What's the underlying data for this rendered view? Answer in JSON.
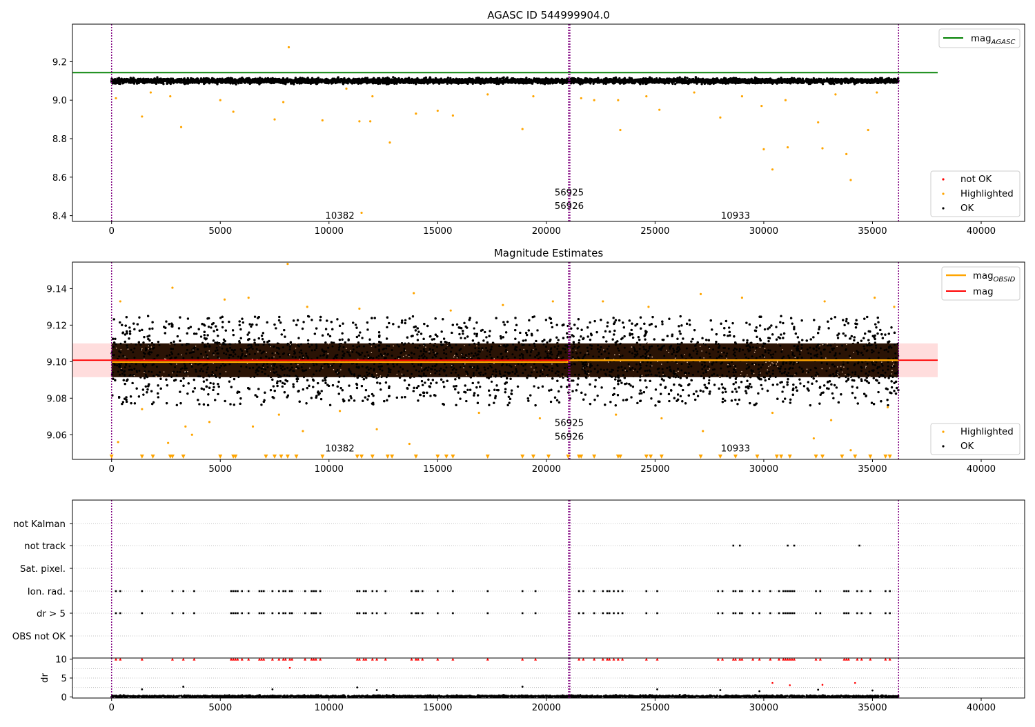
{
  "figure": {
    "title": "AGASC ID 544999904.0",
    "colors": {
      "ok": "#000000",
      "highlighted": "#ffa500",
      "not_ok": "#ff0000",
      "mag_agasc": "#008000",
      "mag_obsid": "#ffa500",
      "mag": "#ff0000",
      "obsid_boundary": "#800080",
      "mag_band": "#ffdddd"
    }
  },
  "chart_data": [
    {
      "type": "scatter",
      "title": "AGASC ID 544999904.0",
      "xlabel": "",
      "ylabel": "",
      "xlim": [
        -1800,
        42000
      ],
      "ylim": [
        8.37,
        9.395
      ],
      "xticks": [
        0,
        5000,
        10000,
        15000,
        20000,
        25000,
        30000,
        35000,
        40000
      ],
      "yticks": [
        8.4,
        8.6,
        8.8,
        9.0,
        9.2
      ],
      "yticklabels": [
        "8.4",
        "8.6",
        "8.8",
        "9.0",
        "9.2"
      ],
      "hlines": [
        {
          "name": "mag_AGASC",
          "y": 9.143,
          "xrange": [
            -1800,
            38000
          ],
          "color": "#008000"
        }
      ],
      "obsid_boundaries": [
        0,
        21020,
        21080,
        36200
      ],
      "obsid_labels": [
        {
          "text": "10382",
          "x": 10500,
          "y": 8.385
        },
        {
          "text": "56925",
          "x": 21050,
          "y": 8.505
        },
        {
          "text": "56926",
          "x": 21050,
          "y": 8.435
        },
        {
          "text": "10933",
          "x": 28700,
          "y": 8.385
        }
      ],
      "series": [
        {
          "name": "not OK",
          "color": "#ff0000",
          "points": []
        },
        {
          "name": "Highlighted",
          "color": "#ffa500",
          "points": [
            [
              1400,
              8.915
            ],
            [
              3200,
              8.86
            ],
            [
              5000,
              9.0
            ],
            [
              5600,
              8.94
            ],
            [
              7500,
              8.9
            ],
            [
              7900,
              8.99
            ],
            [
              8150,
              9.275
            ],
            [
              9700,
              8.895
            ],
            [
              11400,
              8.89
            ],
            [
              11500,
              8.415
            ],
            [
              11900,
              8.89
            ],
            [
              12800,
              8.78
            ],
            [
              14000,
              8.93
            ],
            [
              15000,
              8.945
            ],
            [
              15700,
              8.92
            ],
            [
              18900,
              8.85
            ],
            [
              23400,
              8.845
            ],
            [
              25200,
              8.95
            ],
            [
              28000,
              8.91
            ],
            [
              29900,
              8.97
            ],
            [
              30000,
              8.745
            ],
            [
              30400,
              8.64
            ],
            [
              31100,
              8.755
            ],
            [
              32500,
              8.885
            ],
            [
              32700,
              8.75
            ],
            [
              33800,
              8.72
            ],
            [
              34000,
              8.585
            ],
            [
              34800,
              8.845
            ],
            [
              200,
              9.01
            ],
            [
              1800,
              9.04
            ],
            [
              2700,
              9.02
            ],
            [
              10800,
              9.06
            ],
            [
              12000,
              9.02
            ],
            [
              17300,
              9.03
            ],
            [
              19400,
              9.02
            ],
            [
              21600,
              9.01
            ],
            [
              22200,
              9.0
            ],
            [
              23300,
              9.0
            ],
            [
              24600,
              9.02
            ],
            [
              26800,
              9.04
            ],
            [
              29000,
              9.02
            ],
            [
              31000,
              9.0
            ],
            [
              33300,
              9.03
            ],
            [
              35200,
              9.04
            ]
          ]
        },
        {
          "name": "OK",
          "color": "#000000",
          "band": {
            "x": [
              0,
              36200
            ],
            "center": 9.1,
            "spread": 0.02
          }
        }
      ],
      "legends": [
        {
          "position": "top-right",
          "entries": [
            {
              "label": "mag",
              "sub": "AGASC",
              "kind": "line",
              "color": "#008000"
            }
          ]
        },
        {
          "position": "lower-right",
          "entries": [
            {
              "label": "not OK",
              "kind": "dot",
              "color": "#ff0000"
            },
            {
              "label": "Highlighted",
              "kind": "dot",
              "color": "#ffa500"
            },
            {
              "label": "OK",
              "kind": "dot",
              "color": "#000000"
            }
          ]
        }
      ]
    },
    {
      "type": "scatter",
      "title": "Magnitude Estimates",
      "xlabel": "",
      "ylabel": "",
      "xlim": [
        -1800,
        42000
      ],
      "ylim": [
        9.0465,
        9.1545
      ],
      "xticks": [
        0,
        5000,
        10000,
        15000,
        20000,
        25000,
        30000,
        35000,
        40000
      ],
      "yticks": [
        9.06,
        9.08,
        9.1,
        9.12,
        9.14
      ],
      "yticklabels": [
        "9.06",
        "9.08",
        "9.10",
        "9.12",
        "9.14"
      ],
      "mag_band": {
        "y": [
          9.0915,
          9.11
        ],
        "xrange": [
          -1800,
          38000
        ],
        "color": "#ffdddd"
      },
      "hlines": [
        {
          "name": "mag_OBSID",
          "segments": [
            {
              "x": [
                0,
                21050
              ],
              "y": 9.0998
            },
            {
              "x": [
                21050,
                36200
              ],
              "y": 9.1008
            }
          ],
          "color": "#ffa500"
        },
        {
          "name": "mag",
          "y": 9.1008,
          "xrange": [
            -1800,
            38000
          ],
          "color": "#ff0000"
        }
      ],
      "obsid_boundaries": [
        0,
        21020,
        21080,
        36200
      ],
      "obsid_labels": [
        {
          "text": "10382",
          "x": 10500,
          "y": 9.0508
        },
        {
          "text": "56925",
          "x": 21050,
          "y": 9.0648
        },
        {
          "text": "56926",
          "x": 21050,
          "y": 9.0573
        },
        {
          "text": "10933",
          "x": 28700,
          "y": 9.0508
        }
      ],
      "series": [
        {
          "name": "OK",
          "color": "#000000",
          "band": {
            "x": [
              0,
              36200
            ],
            "dense": [
              9.0915,
              9.11
            ],
            "scatter": [
              9.076,
              9.125
            ]
          }
        },
        {
          "name": "Highlighted",
          "color": "#ffa500",
          "points": [
            [
              8100,
              9.1535
            ],
            [
              2800,
              9.1405
            ],
            [
              13900,
              9.1375
            ],
            [
              27100,
              9.137
            ],
            [
              400,
              9.133
            ],
            [
              20300,
              9.133
            ],
            [
              5200,
              9.134
            ],
            [
              6300,
              9.135
            ],
            [
              18000,
              9.131
            ],
            [
              24700,
              9.13
            ],
            [
              29000,
              9.135
            ],
            [
              32800,
              9.133
            ],
            [
              35100,
              9.135
            ],
            [
              36000,
              9.13
            ],
            [
              9000,
              9.13
            ],
            [
              11400,
              9.129
            ],
            [
              15600,
              9.128
            ],
            [
              22600,
              9.133
            ],
            [
              300,
              9.056
            ],
            [
              2600,
              9.0555
            ],
            [
              3400,
              9.0645
            ],
            [
              3700,
              9.06
            ],
            [
              6500,
              9.0645
            ],
            [
              8800,
              9.062
            ],
            [
              12200,
              9.063
            ],
            [
              13700,
              9.055
            ],
            [
              27200,
              9.062
            ],
            [
              32300,
              9.058
            ],
            [
              34000,
              9.0515
            ],
            [
              1400,
              9.074
            ],
            [
              4500,
              9.067
            ],
            [
              7700,
              9.071
            ],
            [
              10500,
              9.073
            ],
            [
              16900,
              9.072
            ],
            [
              19700,
              9.069
            ],
            [
              23200,
              9.071
            ],
            [
              25300,
              9.069
            ],
            [
              30400,
              9.072
            ],
            [
              33100,
              9.068
            ],
            [
              35700,
              9.075
            ]
          ]
        }
      ],
      "offscale_low_x": [
        0,
        1400,
        1900,
        2700,
        2800,
        3300,
        5000,
        5600,
        5700,
        7100,
        7500,
        7800,
        8100,
        8500,
        9700,
        11300,
        11500,
        12000,
        12700,
        12900,
        14000,
        15000,
        15400,
        15700,
        17300,
        18900,
        19400,
        20100,
        21000,
        21500,
        21600,
        22200,
        23300,
        23400,
        24600,
        24800,
        25300,
        27100,
        28000,
        28700,
        29700,
        30600,
        30800,
        31200,
        32400,
        32700,
        33600,
        34200,
        34900,
        35600,
        35800
      ],
      "legends": [
        {
          "position": "top-right",
          "entries": [
            {
              "label": "mag",
              "sub": "OBSID",
              "kind": "line",
              "color": "#ffa500"
            },
            {
              "label": "mag",
              "sub": "",
              "kind": "line",
              "color": "#ff0000"
            }
          ]
        },
        {
          "position": "lower-right",
          "entries": [
            {
              "label": "Highlighted",
              "kind": "dot",
              "color": "#ffa500"
            },
            {
              "label": "OK",
              "kind": "dot",
              "color": "#000000"
            }
          ]
        }
      ]
    },
    {
      "type": "scatter",
      "title": "",
      "xlabel": "",
      "ylabel": "",
      "xlim": [
        -1800,
        42000
      ],
      "categories": [
        "not Kalman",
        "not track",
        "Sat. pixel.",
        "Ion. rad.",
        "dr > 5",
        "OBS not OK"
      ],
      "obsid_boundaries": [
        0,
        21020,
        21080,
        36200
      ],
      "flags": {
        "not track": [
          28600,
          28900,
          31100,
          31400,
          34400
        ],
        "Ion. rad.": [
          200,
          400,
          1400,
          2800,
          3300,
          3800,
          5500,
          5600,
          5700,
          5800,
          6000,
          6300,
          6800,
          6900,
          7000,
          7400,
          7700,
          7900,
          8000,
          8200,
          8300,
          8900,
          9200,
          9300,
          9400,
          9600,
          11300,
          11400,
          11600,
          11700,
          12000,
          12200,
          12600,
          13800,
          14000,
          14100,
          14300,
          15000,
          15700,
          17300,
          18900,
          19500,
          21500,
          21700,
          22200,
          22600,
          22800,
          22900,
          23100,
          23300,
          23500,
          24600,
          25100,
          27900,
          28100,
          28600,
          28700,
          28900,
          29000,
          29500,
          29800,
          30300,
          30700,
          30900,
          31000,
          31100,
          31200,
          31300,
          31400,
          32400,
          32600,
          33700,
          33800,
          33900,
          34300,
          34500,
          34900,
          35600,
          35800
        ],
        "dr > 5": [
          200,
          400,
          1400,
          2800,
          3300,
          3800,
          5500,
          5600,
          5700,
          5800,
          6000,
          6300,
          6800,
          6900,
          7000,
          7400,
          7700,
          7900,
          8000,
          8200,
          8300,
          8900,
          9200,
          9300,
          9400,
          9600,
          11300,
          11400,
          11600,
          11700,
          12000,
          12200,
          12600,
          13800,
          14000,
          14100,
          14300,
          15000,
          15700,
          17300,
          18900,
          19500,
          21500,
          21700,
          22200,
          22600,
          22800,
          22900,
          23100,
          23300,
          23500,
          24600,
          25100,
          27900,
          28100,
          28600,
          28700,
          28900,
          29000,
          29500,
          29800,
          30300,
          30700,
          30900,
          31000,
          31100,
          31200,
          31300,
          31400,
          32400,
          32600,
          33700,
          33800,
          33900,
          34300,
          34500,
          34900,
          35600,
          35800
        ]
      }
    },
    {
      "type": "scatter",
      "title": "",
      "xlabel": "",
      "ylabel": "dr",
      "xlim": [
        -1800,
        42000
      ],
      "ylim": [
        -0.3,
        10.3
      ],
      "xticks": [
        0,
        5000,
        10000,
        15000,
        20000,
        25000,
        30000,
        35000,
        40000
      ],
      "yticks": [
        0,
        5,
        10
      ],
      "yticklabels": [
        "0",
        "5",
        "10"
      ],
      "obsid_boundaries": [
        0,
        21020,
        21080,
        36200
      ],
      "series": [
        {
          "name": "not OK",
          "color": "#ff0000",
          "clipped_at_10_x": [
            200,
            400,
            1400,
            2800,
            3300,
            3800,
            5500,
            5600,
            5700,
            5800,
            6000,
            6300,
            6800,
            6900,
            7000,
            7400,
            7700,
            7900,
            8000,
            8200,
            8300,
            8900,
            9200,
            9300,
            9400,
            9600,
            11300,
            11400,
            11600,
            11700,
            12000,
            12200,
            12600,
            13800,
            14000,
            14100,
            14300,
            15000,
            15700,
            17300,
            18900,
            19500,
            21500,
            21700,
            22200,
            22600,
            22800,
            22900,
            23100,
            23300,
            23500,
            24600,
            25100,
            27900,
            28100,
            28600,
            28700,
            28900,
            29000,
            29500,
            29800,
            30300,
            30700,
            30900,
            31000,
            31100,
            31200,
            31300,
            31400,
            32400,
            32600,
            33700,
            33800,
            33900,
            34300,
            34500,
            34900,
            35600,
            35800
          ],
          "points": [
            [
              8200,
              7.7
            ],
            [
              30400,
              3.7
            ],
            [
              31200,
              3.1
            ],
            [
              32700,
              3.2
            ],
            [
              34200,
              3.7
            ]
          ]
        },
        {
          "name": "OK",
          "color": "#000000",
          "band": {
            "x": [
              0,
              36200
            ],
            "y": [
              0,
              0.6
            ]
          },
          "points": [
            [
              1400,
              2.0
            ],
            [
              3300,
              2.7
            ],
            [
              7400,
              2.0
            ],
            [
              11300,
              2.5
            ],
            [
              12200,
              1.8
            ],
            [
              18900,
              2.7
            ],
            [
              25100,
              2.0
            ],
            [
              28000,
              1.8
            ],
            [
              29800,
              1.5
            ],
            [
              32500,
              1.9
            ],
            [
              35000,
              1.7
            ]
          ]
        }
      ]
    }
  ]
}
